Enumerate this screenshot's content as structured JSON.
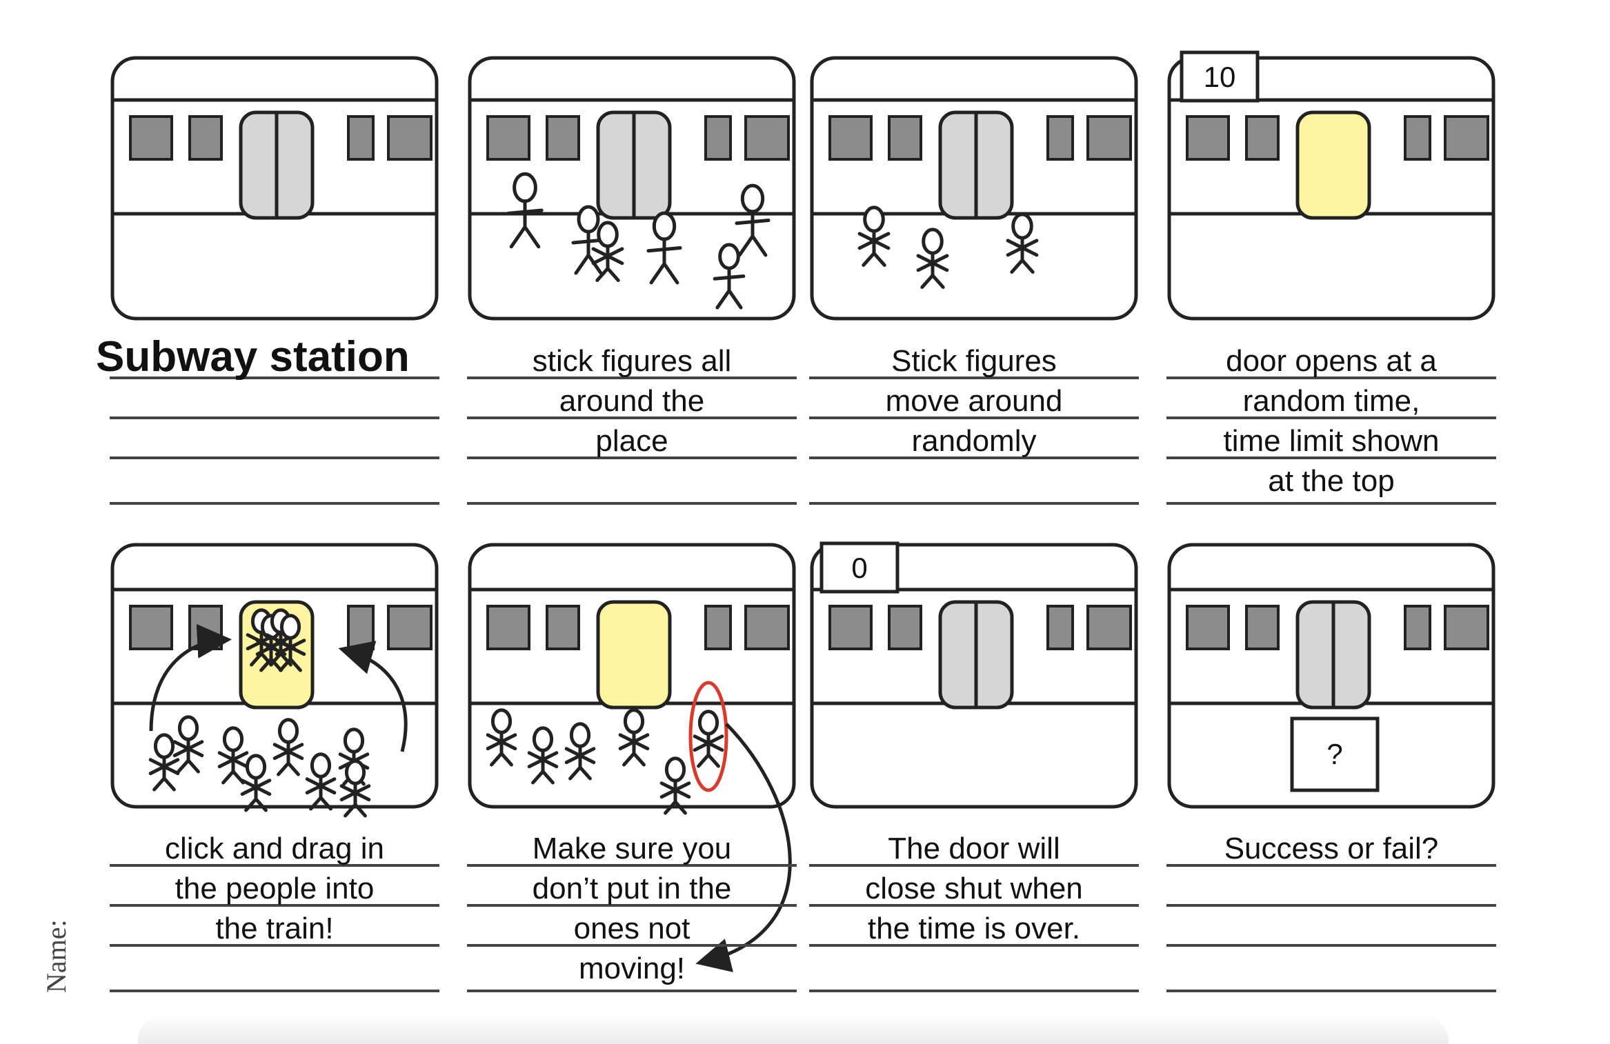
{
  "panels": [
    {
      "id": 1,
      "caption_lines": [
        "Subway station"
      ],
      "caption_style": "title"
    },
    {
      "id": 2,
      "caption_lines": [
        "stick figures all",
        "around the",
        "place"
      ]
    },
    {
      "id": 3,
      "caption_lines": [
        "Stick figures",
        "move around",
        "randomly"
      ]
    },
    {
      "id": 4,
      "timer": "10",
      "caption_lines": [
        "door opens at a",
        "random time,",
        "time limit shown",
        "at the top"
      ]
    },
    {
      "id": 5,
      "caption_lines": [
        "click and drag in",
        "the people into",
        "the train!"
      ]
    },
    {
      "id": 6,
      "caption_lines": [
        "Make sure you",
        "don’t put in the",
        "ones not",
        "moving!"
      ]
    },
    {
      "id": 7,
      "timer": "0",
      "caption_lines": [
        "The door will",
        "close shut when",
        "the time is over."
      ]
    },
    {
      "id": 8,
      "result_box": "?",
      "caption_lines": [
        "Success or fail?"
      ]
    }
  ],
  "footer": {
    "name_label": "Name:"
  },
  "colors": {
    "window": "#8c8c8c",
    "door_closed": "#d6d6d6",
    "door_open": "#fff5a0",
    "highlight_ring": "#d93a2b",
    "outline": "#222222",
    "caption_line": "#444444"
  }
}
